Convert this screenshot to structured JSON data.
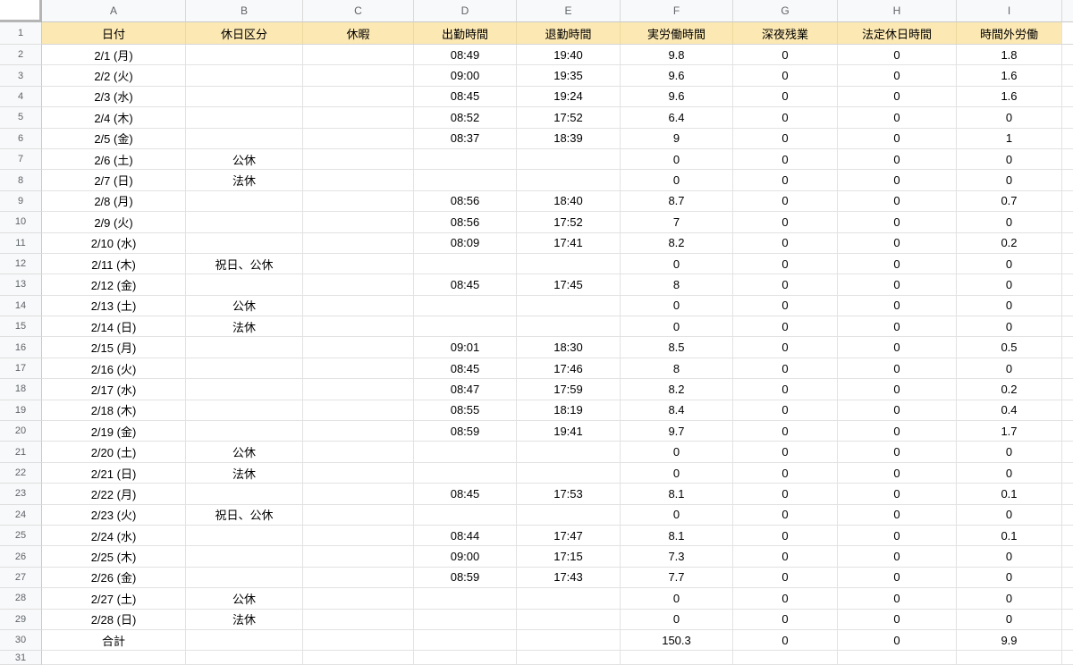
{
  "colors": {
    "header_fill": "#fce8b2",
    "header_divider": "#ecd9a2",
    "gridline": "#e2e2e2",
    "strip_bg": "#f8f9fa",
    "muted_text": "#5f6368",
    "cell_text": "#000000",
    "corner_edge": "#b5b5b5"
  },
  "sheet": {
    "column_letters": [
      "A",
      "B",
      "C",
      "D",
      "E",
      "F",
      "G",
      "H",
      "I"
    ],
    "header_row_number": "1",
    "header_cells": [
      "日付",
      "休日区分",
      "休暇",
      "出勤時間",
      "退勤時間",
      "実労働時間",
      "深夜残業",
      "法定休日時間",
      "時間外労働"
    ],
    "rows": [
      {
        "row_number": "2",
        "cells": [
          "2/1 (月)",
          "",
          "",
          "08:49",
          "19:40",
          "9.8",
          "0",
          "0",
          "1.8"
        ]
      },
      {
        "row_number": "3",
        "cells": [
          "2/2 (火)",
          "",
          "",
          "09:00",
          "19:35",
          "9.6",
          "0",
          "0",
          "1.6"
        ]
      },
      {
        "row_number": "4",
        "cells": [
          "2/3 (水)",
          "",
          "",
          "08:45",
          "19:24",
          "9.6",
          "0",
          "0",
          "1.6"
        ]
      },
      {
        "row_number": "5",
        "cells": [
          "2/4 (木)",
          "",
          "",
          "08:52",
          "17:52",
          "6.4",
          "0",
          "0",
          "0"
        ]
      },
      {
        "row_number": "6",
        "cells": [
          "2/5 (金)",
          "",
          "",
          "08:37",
          "18:39",
          "9",
          "0",
          "0",
          "1"
        ]
      },
      {
        "row_number": "7",
        "cells": [
          "2/6 (土)",
          "公休",
          "",
          "",
          "",
          "0",
          "0",
          "0",
          "0"
        ]
      },
      {
        "row_number": "8",
        "cells": [
          "2/7 (日)",
          "法休",
          "",
          "",
          "",
          "0",
          "0",
          "0",
          "0"
        ]
      },
      {
        "row_number": "9",
        "cells": [
          "2/8 (月)",
          "",
          "",
          "08:56",
          "18:40",
          "8.7",
          "0",
          "0",
          "0.7"
        ]
      },
      {
        "row_number": "10",
        "cells": [
          "2/9 (火)",
          "",
          "",
          "08:56",
          "17:52",
          "7",
          "0",
          "0",
          "0"
        ]
      },
      {
        "row_number": "11",
        "cells": [
          "2/10 (水)",
          "",
          "",
          "08:09",
          "17:41",
          "8.2",
          "0",
          "0",
          "0.2"
        ]
      },
      {
        "row_number": "12",
        "cells": [
          "2/11 (木)",
          "祝日、公休",
          "",
          "",
          "",
          "0",
          "0",
          "0",
          "0"
        ]
      },
      {
        "row_number": "13",
        "cells": [
          "2/12 (金)",
          "",
          "",
          "08:45",
          "17:45",
          "8",
          "0",
          "0",
          "0"
        ]
      },
      {
        "row_number": "14",
        "cells": [
          "2/13 (土)",
          "公休",
          "",
          "",
          "",
          "0",
          "0",
          "0",
          "0"
        ]
      },
      {
        "row_number": "15",
        "cells": [
          "2/14 (日)",
          "法休",
          "",
          "",
          "",
          "0",
          "0",
          "0",
          "0"
        ]
      },
      {
        "row_number": "16",
        "cells": [
          "2/15 (月)",
          "",
          "",
          "09:01",
          "18:30",
          "8.5",
          "0",
          "0",
          "0.5"
        ]
      },
      {
        "row_number": "17",
        "cells": [
          "2/16 (火)",
          "",
          "",
          "08:45",
          "17:46",
          "8",
          "0",
          "0",
          "0"
        ]
      },
      {
        "row_number": "18",
        "cells": [
          "2/17 (水)",
          "",
          "",
          "08:47",
          "17:59",
          "8.2",
          "0",
          "0",
          "0.2"
        ]
      },
      {
        "row_number": "19",
        "cells": [
          "2/18 (木)",
          "",
          "",
          "08:55",
          "18:19",
          "8.4",
          "0",
          "0",
          "0.4"
        ]
      },
      {
        "row_number": "20",
        "cells": [
          "2/19 (金)",
          "",
          "",
          "08:59",
          "19:41",
          "9.7",
          "0",
          "0",
          "1.7"
        ]
      },
      {
        "row_number": "21",
        "cells": [
          "2/20 (土)",
          "公休",
          "",
          "",
          "",
          "0",
          "0",
          "0",
          "0"
        ]
      },
      {
        "row_number": "22",
        "cells": [
          "2/21 (日)",
          "法休",
          "",
          "",
          "",
          "0",
          "0",
          "0",
          "0"
        ]
      },
      {
        "row_number": "23",
        "cells": [
          "2/22 (月)",
          "",
          "",
          "08:45",
          "17:53",
          "8.1",
          "0",
          "0",
          "0.1"
        ]
      },
      {
        "row_number": "24",
        "cells": [
          "2/23 (火)",
          "祝日、公休",
          "",
          "",
          "",
          "0",
          "0",
          "0",
          "0"
        ]
      },
      {
        "row_number": "25",
        "cells": [
          "2/24 (水)",
          "",
          "",
          "08:44",
          "17:47",
          "8.1",
          "0",
          "0",
          "0.1"
        ]
      },
      {
        "row_number": "26",
        "cells": [
          "2/25 (木)",
          "",
          "",
          "09:00",
          "17:15",
          "7.3",
          "0",
          "0",
          "0"
        ]
      },
      {
        "row_number": "27",
        "cells": [
          "2/26 (金)",
          "",
          "",
          "08:59",
          "17:43",
          "7.7",
          "0",
          "0",
          "0"
        ]
      },
      {
        "row_number": "28",
        "cells": [
          "2/27 (土)",
          "公休",
          "",
          "",
          "",
          "0",
          "0",
          "0",
          "0"
        ]
      },
      {
        "row_number": "29",
        "cells": [
          "2/28 (日)",
          "法休",
          "",
          "",
          "",
          "0",
          "0",
          "0",
          "0"
        ]
      },
      {
        "row_number": "30",
        "cells": [
          "合計",
          "",
          "",
          "",
          "",
          "150.3",
          "0",
          "0",
          "9.9"
        ]
      },
      {
        "row_number": "31",
        "cells": [
          "",
          "",
          "",
          "",
          "",
          "",
          "",
          "",
          ""
        ]
      }
    ]
  }
}
